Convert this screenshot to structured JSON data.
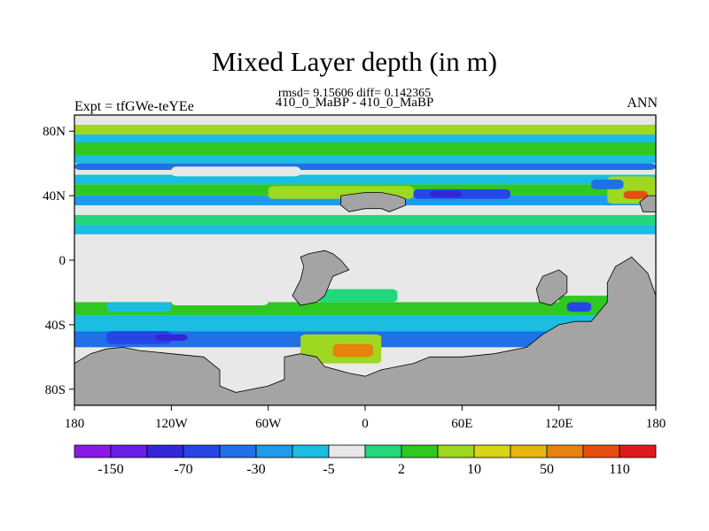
{
  "chart_data": {
    "type": "heatmap",
    "title": "Mixed Layer depth (in m)",
    "rmsd_text": "rmsd= 9.15606 diff= 0.142365",
    "subtitle": "410_0_MaBP - 410_0_MaBP",
    "left_label": "Expt = tfGWe-teYEe",
    "right_label": "ANN",
    "xlim": [
      -180,
      180
    ],
    "ylim": [
      -90,
      90
    ],
    "x_ticks": [
      {
        "value": -180,
        "label": "180"
      },
      {
        "value": -120,
        "label": "120W"
      },
      {
        "value": -60,
        "label": "60W"
      },
      {
        "value": 0,
        "label": "0"
      },
      {
        "value": 60,
        "label": "60E"
      },
      {
        "value": 120,
        "label": "120E"
      },
      {
        "value": 180,
        "label": "180"
      }
    ],
    "y_ticks": [
      {
        "value": 80,
        "label": "80N"
      },
      {
        "value": 40,
        "label": "40N"
      },
      {
        "value": 0,
        "label": "0"
      },
      {
        "value": -40,
        "label": "40S"
      },
      {
        "value": -80,
        "label": "80S"
      }
    ],
    "colorbar": {
      "colors": [
        "#8a1be6",
        "#6a1ee8",
        "#3226d6",
        "#2746e6",
        "#2070e6",
        "#1f9be8",
        "#1bbde0",
        "#e8e8e8",
        "#22d87a",
        "#2ec820",
        "#9ed820",
        "#d6d614",
        "#e6b60e",
        "#e6820e",
        "#e64e10",
        "#e01a1a"
      ],
      "labels": [
        {
          "after_index": 1,
          "text": "-150"
        },
        {
          "after_index": 3,
          "text": "-70"
        },
        {
          "after_index": 5,
          "text": "-30"
        },
        {
          "after_index": 7,
          "text": "-5"
        },
        {
          "after_index": 9,
          "text": "2"
        },
        {
          "after_index": 11,
          "text": "10"
        },
        {
          "after_index": 13,
          "text": "50"
        },
        {
          "after_index": 15,
          "text": "110"
        }
      ]
    },
    "land_color": "#a4a4a4",
    "zonal_bands": [
      {
        "lat_top": 90,
        "lat_bottom": 84,
        "color": "#e8e8e8"
      },
      {
        "lat_top": 84,
        "lat_bottom": 78,
        "color": "#9ed820"
      },
      {
        "lat_top": 78,
        "lat_bottom": 73,
        "color": "#1bbde0"
      },
      {
        "lat_top": 73,
        "lat_bottom": 65,
        "color": "#2ec820"
      },
      {
        "lat_top": 65,
        "lat_bottom": 60,
        "color": "#1bbde0"
      },
      {
        "lat_top": 60,
        "lat_bottom": 53,
        "color": "#e8e8e8"
      },
      {
        "lat_top": 53,
        "lat_bottom": 47,
        "color": "#1bbde0"
      },
      {
        "lat_top": 47,
        "lat_bottom": 40,
        "color": "#2ec820"
      },
      {
        "lat_top": 40,
        "lat_bottom": 34,
        "color": "#1f9be8"
      },
      {
        "lat_top": 34,
        "lat_bottom": 28,
        "color": "#e8e8e8"
      },
      {
        "lat_top": 28,
        "lat_bottom": 22,
        "color": "#22d87a"
      },
      {
        "lat_top": 22,
        "lat_bottom": 16,
        "color": "#1bbde0"
      },
      {
        "lat_top": 16,
        "lat_bottom": -15,
        "color": "#e8e8e8"
      },
      {
        "lat_top": -15,
        "lat_bottom": -26,
        "color": "#e8e8e8"
      },
      {
        "lat_top": -26,
        "lat_bottom": -34,
        "color": "#2ec820"
      },
      {
        "lat_top": -34,
        "lat_bottom": -44,
        "color": "#1bbde0"
      },
      {
        "lat_top": -44,
        "lat_bottom": -54,
        "color": "#2070e6"
      },
      {
        "lat_top": -54,
        "lat_bottom": -90,
        "color": "#e8e8e8"
      }
    ],
    "patches": [
      {
        "lon1": -180,
        "lon2": 180,
        "lat1": 56,
        "lat2": 60,
        "color": "#2070e6"
      },
      {
        "lon1": -120,
        "lon2": -40,
        "lat1": 52,
        "lat2": 58,
        "color": "#e8e8e8"
      },
      {
        "lon1": -60,
        "lon2": 30,
        "lat1": 38,
        "lat2": 46,
        "color": "#9ed820"
      },
      {
        "lon1": 30,
        "lon2": 90,
        "lat1": 38,
        "lat2": 44,
        "color": "#2746e6"
      },
      {
        "lon1": 40,
        "lon2": 60,
        "lat1": 39,
        "lat2": 43,
        "color": "#3226d6"
      },
      {
        "lon1": 150,
        "lon2": 180,
        "lat1": 35,
        "lat2": 52,
        "color": "#9ed820"
      },
      {
        "lon1": 160,
        "lon2": 175,
        "lat1": 38,
        "lat2": 43,
        "color": "#e64e10"
      },
      {
        "lon1": 140,
        "lon2": 160,
        "lat1": 44,
        "lat2": 50,
        "color": "#2070e6"
      },
      {
        "lon1": -120,
        "lon2": -60,
        "lat1": -28,
        "lat2": -20,
        "color": "#e8e8e8"
      },
      {
        "lon1": -160,
        "lon2": -120,
        "lat1": -32,
        "lat2": -26,
        "color": "#1bbde0"
      },
      {
        "lon1": -30,
        "lon2": 20,
        "lat1": -26,
        "lat2": -18,
        "color": "#22d87a"
      },
      {
        "lon1": -160,
        "lon2": -120,
        "lat1": -52,
        "lat2": -44,
        "color": "#2746e6"
      },
      {
        "lon1": -130,
        "lon2": -110,
        "lat1": -50,
        "lat2": -46,
        "color": "#3226d6"
      },
      {
        "lon1": -40,
        "lon2": 10,
        "lat1": -64,
        "lat2": -46,
        "color": "#9ed820"
      },
      {
        "lon1": -20,
        "lon2": 5,
        "lat1": -60,
        "lat2": -52,
        "color": "#e6820e"
      },
      {
        "lon1": 120,
        "lon2": 160,
        "lat1": -30,
        "lat2": -22,
        "color": "#2ec820"
      },
      {
        "lon1": 125,
        "lon2": 140,
        "lat1": -32,
        "lat2": -26,
        "color": "#2746e6"
      },
      {
        "lon1": 80,
        "lon2": 120,
        "lat1": -20,
        "lat2": -10,
        "color": "#e8e8e8"
      }
    ],
    "land": [
      [
        [
          -180,
          -64
        ],
        [
          -170,
          -58
        ],
        [
          -160,
          -55
        ],
        [
          -150,
          -54
        ],
        [
          -140,
          -56
        ],
        [
          -120,
          -58
        ],
        [
          -100,
          -60
        ],
        [
          -90,
          -68
        ],
        [
          -90,
          -78
        ],
        [
          -80,
          -82
        ],
        [
          -60,
          -78
        ],
        [
          -50,
          -74
        ],
        [
          -50,
          -60
        ],
        [
          -40,
          -58
        ],
        [
          -30,
          -60
        ],
        [
          -25,
          -66
        ],
        [
          -10,
          -70
        ],
        [
          0,
          -72
        ],
        [
          10,
          -68
        ],
        [
          30,
          -64
        ],
        [
          40,
          -60
        ],
        [
          60,
          -60
        ],
        [
          80,
          -58
        ],
        [
          100,
          -54
        ],
        [
          110,
          -46
        ],
        [
          120,
          -40
        ],
        [
          130,
          -38
        ],
        [
          140,
          -38
        ],
        [
          150,
          -26
        ],
        [
          150,
          -14
        ],
        [
          155,
          -4
        ],
        [
          165,
          2
        ],
        [
          175,
          -8
        ],
        [
          180,
          -22
        ],
        [
          180,
          -90
        ],
        [
          -180,
          -90
        ]
      ],
      [
        [
          -40,
          2
        ],
        [
          -35,
          4
        ],
        [
          -25,
          6
        ],
        [
          -20,
          4
        ],
        [
          -15,
          0
        ],
        [
          -10,
          -6
        ],
        [
          -20,
          -10
        ],
        [
          -25,
          -22
        ],
        [
          -30,
          -26
        ],
        [
          -40,
          -28
        ],
        [
          -45,
          -22
        ],
        [
          -40,
          -12
        ],
        [
          -38,
          -4
        ]
      ],
      [
        [
          -15,
          40
        ],
        [
          0,
          42
        ],
        [
          10,
          42
        ],
        [
          20,
          40
        ],
        [
          25,
          38
        ],
        [
          25,
          34
        ],
        [
          15,
          30
        ],
        [
          10,
          32
        ],
        [
          0,
          32
        ],
        [
          -10,
          30
        ],
        [
          -15,
          34
        ]
      ],
      [
        [
          110,
          -10
        ],
        [
          120,
          -6
        ],
        [
          125,
          -10
        ],
        [
          125,
          -20
        ],
        [
          115,
          -28
        ],
        [
          108,
          -26
        ],
        [
          106,
          -18
        ]
      ],
      [
        [
          170,
          36
        ],
        [
          175,
          40
        ],
        [
          180,
          40
        ],
        [
          180,
          30
        ],
        [
          172,
          30
        ]
      ]
    ]
  }
}
